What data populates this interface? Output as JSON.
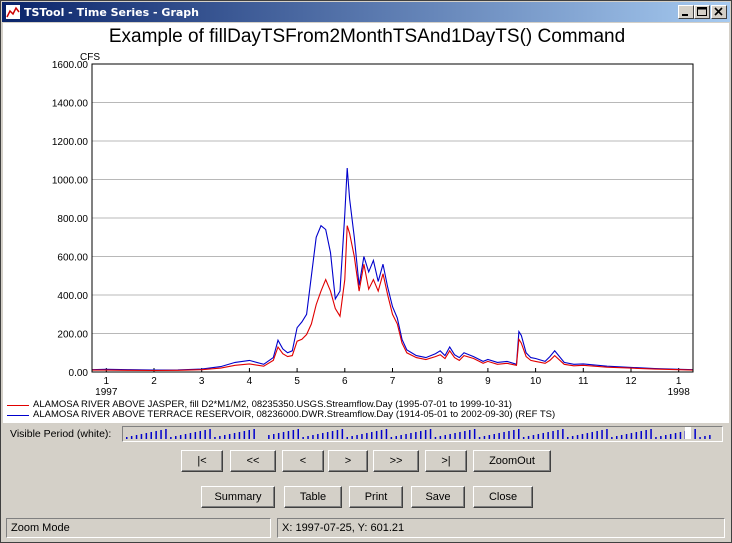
{
  "window": {
    "title": "TSTool - Time Series - Graph",
    "controls": [
      "minimize-icon",
      "maximize-icon",
      "close-icon"
    ]
  },
  "chart_data": {
    "type": "line",
    "title": "Example of fillDayTSFrom2MonthTSAnd1DayTS() Command",
    "ylabel": "CFS",
    "xlabel": "",
    "ylim": [
      0,
      1600
    ],
    "xlim": [
      0.7,
      13.3
    ],
    "yticks": [
      "0.00",
      "200.00",
      "400.00",
      "600.00",
      "800.00",
      "1000.00",
      "1200.00",
      "1400.00",
      "1600.00"
    ],
    "xticks": [
      "1",
      "2",
      "3",
      "4",
      "5",
      "6",
      "7",
      "8",
      "9",
      "10",
      "11",
      "12",
      "1"
    ],
    "year_labels": [
      "1997",
      "1998"
    ],
    "grid": true,
    "legend_position": "bottom",
    "series": [
      {
        "name": "ALAMOSA RIVER ABOVE JASPER, fill D2*M1/M2, 08235350.USGS.Streamflow.Day (1995-07-01 to 1999-10-31)",
        "color": "#e00000",
        "x": [
          0.7,
          1,
          1.5,
          2,
          2.5,
          3,
          3.4,
          3.7,
          4,
          4.3,
          4.5,
          4.6,
          4.7,
          4.8,
          4.9,
          5,
          5.1,
          5.2,
          5.3,
          5.4,
          5.5,
          5.6,
          5.7,
          5.8,
          5.9,
          6,
          6.05,
          6.1,
          6.2,
          6.3,
          6.4,
          6.5,
          6.6,
          6.7,
          6.8,
          6.9,
          7,
          7.1,
          7.2,
          7.3,
          7.5,
          7.7,
          7.9,
          8,
          8.1,
          8.2,
          8.3,
          8.4,
          8.5,
          8.7,
          8.9,
          9,
          9.2,
          9.4,
          9.6,
          9.65,
          9.7,
          9.8,
          9.9,
          10,
          10.2,
          10.3,
          10.4,
          10.6,
          10.8,
          11,
          11.5,
          12,
          12.5,
          13,
          13.3
        ],
        "y": [
          10,
          10,
          9,
          8,
          9,
          12,
          20,
          35,
          42,
          30,
          60,
          130,
          95,
          80,
          85,
          160,
          170,
          195,
          250,
          350,
          420,
          480,
          420,
          330,
          290,
          480,
          760,
          720,
          600,
          420,
          560,
          430,
          480,
          420,
          510,
          400,
          300,
          250,
          150,
          100,
          75,
          65,
          80,
          90,
          70,
          110,
          75,
          60,
          85,
          70,
          45,
          55,
          40,
          45,
          35,
          170,
          150,
          80,
          60,
          55,
          45,
          60,
          85,
          40,
          32,
          35,
          25,
          20,
          15,
          12,
          10
        ]
      },
      {
        "name": "ALAMOSA RIVER ABOVE TERRACE RESERVOIR, 08236000.DWR.Streamflow.Day (1914-05-01 to 2002-09-30) (REF TS)",
        "color": "#0000cc",
        "x": [
          0.7,
          1,
          1.5,
          2,
          2.5,
          3,
          3.4,
          3.7,
          4,
          4.3,
          4.5,
          4.6,
          4.7,
          4.8,
          4.9,
          5,
          5.1,
          5.2,
          5.3,
          5.4,
          5.5,
          5.6,
          5.7,
          5.8,
          5.9,
          6,
          6.05,
          6.1,
          6.2,
          6.3,
          6.4,
          6.5,
          6.6,
          6.7,
          6.8,
          6.9,
          7,
          7.1,
          7.2,
          7.3,
          7.5,
          7.7,
          7.9,
          8,
          8.1,
          8.2,
          8.3,
          8.4,
          8.5,
          8.7,
          8.9,
          9,
          9.2,
          9.4,
          9.6,
          9.65,
          9.7,
          9.8,
          9.9,
          10,
          10.2,
          10.3,
          10.4,
          10.6,
          10.8,
          11,
          11.5,
          12,
          12.5,
          13,
          13.3
        ],
        "y": [
          12,
          14,
          12,
          10,
          11,
          15,
          28,
          50,
          60,
          40,
          75,
          165,
          120,
          100,
          110,
          230,
          260,
          300,
          500,
          700,
          760,
          740,
          620,
          380,
          420,
          820,
          1060,
          900,
          700,
          450,
          600,
          520,
          580,
          470,
          560,
          440,
          340,
          280,
          170,
          115,
          85,
          75,
          95,
          110,
          85,
          130,
          90,
          75,
          100,
          80,
          55,
          65,
          50,
          55,
          40,
          210,
          190,
          100,
          75,
          70,
          55,
          80,
          110,
          50,
          40,
          42,
          30,
          24,
          18,
          14,
          12
        ]
      }
    ]
  },
  "visible_period": {
    "label": "Visible Period (white):"
  },
  "nav_buttons": [
    "|<",
    "<<",
    "<",
    ">",
    ">>",
    ">|",
    "ZoomOut"
  ],
  "action_buttons": [
    "Summary",
    "Table",
    "Print",
    "Save",
    "Close"
  ],
  "status": {
    "mode": "Zoom Mode",
    "coords": "X:  1997-07-25,  Y:  601.21"
  }
}
